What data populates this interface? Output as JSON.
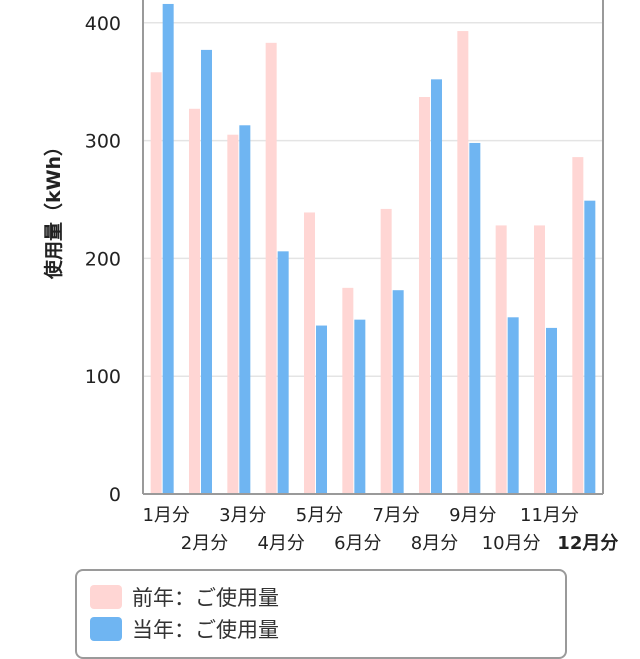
{
  "chart_data": {
    "type": "bar",
    "ylabel": "使用量（kWh）",
    "categories": [
      "1月分",
      "2月分",
      "3月分",
      "4月分",
      "5月分",
      "6月分",
      "7月分",
      "8月分",
      "9月分",
      "10月分",
      "11月分",
      "12月分"
    ],
    "highlight_category": "12月分",
    "yticks": [
      "0",
      "100",
      "200",
      "300",
      "400"
    ],
    "ylim": [
      0,
      420
    ],
    "grid": true,
    "series": [
      {
        "name": "前年：ご使用量",
        "color": "#ffd6d4",
        "values": [
          358,
          327,
          305,
          383,
          239,
          175,
          242,
          337,
          393,
          228,
          228,
          286
        ]
      },
      {
        "name": "当年：ご使用量",
        "color": "#6fb5f2",
        "values": [
          416,
          377,
          313,
          206,
          143,
          148,
          173,
          352,
          298,
          150,
          141,
          249
        ]
      }
    ],
    "legend_position": "bottom"
  }
}
